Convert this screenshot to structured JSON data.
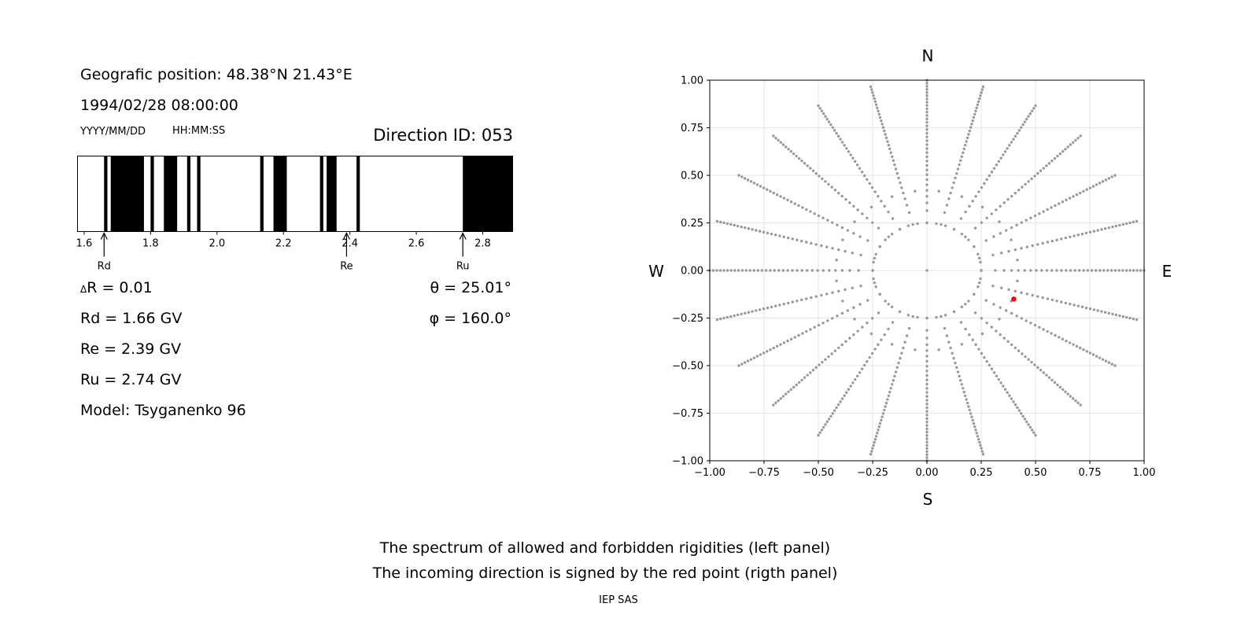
{
  "left_panel": {
    "position": "Geografic position: 48.38°N 21.43°E",
    "datetime": "1994/02/28 08:00:00",
    "date_format": "YYYY/MM/DD",
    "time_format": "HH:MM:SS",
    "direction_id": "Direction ID: 053",
    "delta_r": "R = 0.01",
    "delta_symbol": "Δ",
    "rd_value": "Rd = 1.66 GV",
    "re_value": "Re = 2.39 GV",
    "ru_value": "Ru = 2.74 GV",
    "model": "Model: Tsyganenko 96",
    "theta": "θ = 25.01°",
    "phi": "φ = 160.0°"
  },
  "footer": {
    "line1": "The spectrum of allowed and forbidden rigidities (left panel)",
    "line2": "The incoming direction is signed by the red point (rigth panel)",
    "credit": "IEP SAS"
  },
  "colors": {
    "forbidden": "#000000",
    "allowed": "#ffffff",
    "grid_points": "#999999",
    "red_point": "#ff0000"
  },
  "chart_data": [
    {
      "type": "heatmap",
      "name": "rigidity spectrum",
      "xlim": [
        1.58,
        2.89
      ],
      "x_ticks": [
        1.6,
        1.8,
        2.0,
        2.2,
        2.4,
        2.6,
        2.8
      ],
      "x_tick_labels": [
        "1.6",
        "1.8",
        "2.0",
        "2.2",
        "2.4",
        "2.6",
        "2.8"
      ],
      "forbidden_bands": [
        [
          1.66,
          1.67
        ],
        [
          1.68,
          1.78
        ],
        [
          1.8,
          1.81
        ],
        [
          1.84,
          1.88
        ],
        [
          1.91,
          1.92
        ],
        [
          1.94,
          1.95
        ],
        [
          2.13,
          2.14
        ],
        [
          2.17,
          2.21
        ],
        [
          2.31,
          2.32
        ],
        [
          2.33,
          2.36
        ],
        [
          2.42,
          2.43
        ],
        [
          2.74,
          2.89
        ]
      ],
      "markers": [
        {
          "label": "Rd",
          "value": 1.66
        },
        {
          "label": "Re",
          "value": 2.39
        },
        {
          "label": "Ru",
          "value": 2.74
        }
      ]
    },
    {
      "type": "scatter",
      "name": "incoming directions",
      "xlim": [
        -1.0,
        1.0
      ],
      "ylim": [
        -1.0,
        1.0
      ],
      "x_ticks": [
        -1.0,
        -0.75,
        -0.5,
        -0.25,
        0.0,
        0.25,
        0.5,
        0.75,
        1.0
      ],
      "y_ticks": [
        -1.0,
        -0.75,
        -0.5,
        -0.25,
        0.0,
        0.25,
        0.5,
        0.75,
        1.0
      ],
      "x_tick_labels": [
        "−1.00",
        "−0.75",
        "−0.50",
        "−0.25",
        "0.00",
        "0.25",
        "0.50",
        "0.75",
        "1.00"
      ],
      "y_tick_labels": [
        "−1.00",
        "−0.75",
        "−0.50",
        "−0.25",
        "0.00",
        "0.25",
        "0.50",
        "0.75",
        "1.00"
      ],
      "grid": true,
      "compass": {
        "north": "N",
        "south": "S",
        "east": "E",
        "west": "W"
      },
      "direction_rays_deg": [
        0,
        15,
        30,
        45,
        60,
        75,
        90,
        105,
        120,
        135,
        150,
        165,
        180,
        195,
        210,
        225,
        240,
        255,
        270,
        285,
        300,
        315,
        330,
        345
      ],
      "ray_radius_range": [
        0.25,
        1.0
      ],
      "ray_samples": 34,
      "rings": [
        0.25,
        0.42
      ],
      "ring_samples": [
        36,
        24
      ],
      "center_point": [
        0.0,
        0.0
      ],
      "highlight": {
        "x": 0.4,
        "y": -0.15
      }
    }
  ]
}
